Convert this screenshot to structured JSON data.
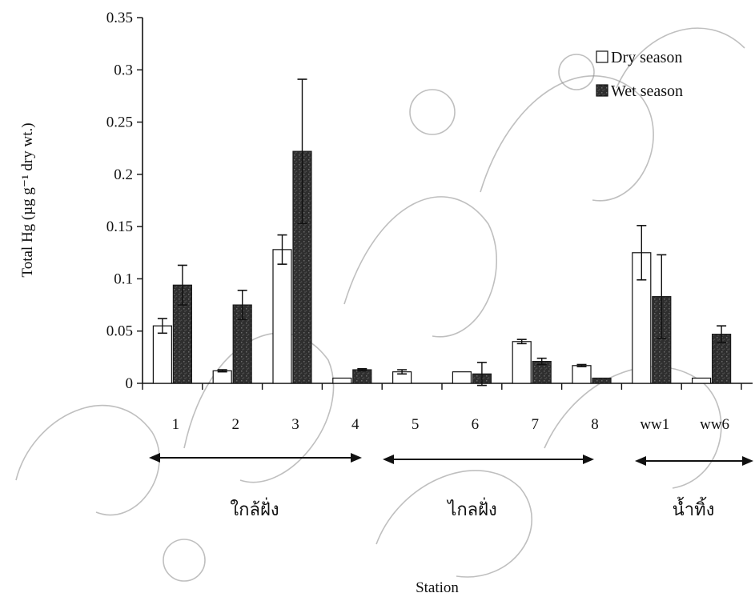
{
  "chart_data": {
    "type": "bar",
    "categories": [
      "1",
      "2",
      "3",
      "4",
      "5",
      "6",
      "7",
      "8",
      "ww1",
      "ww6"
    ],
    "series": [
      {
        "name": "Dry season",
        "values": [
          0.055,
          0.012,
          0.128,
          0.005,
          0.011,
          0.011,
          0.04,
          0.017,
          0.125,
          0.005
        ],
        "errors": [
          0.007,
          0.001,
          0.014,
          0.0,
          0.002,
          0.0,
          0.002,
          0.001,
          0.026,
          0.0
        ],
        "color": "#ffffff"
      },
      {
        "name": "Wet season",
        "values": [
          0.094,
          0.075,
          0.222,
          0.013,
          0.0,
          0.009,
          0.021,
          0.005,
          0.083,
          0.047
        ],
        "errors": [
          0.019,
          0.014,
          0.069,
          0.001,
          0.0,
          0.011,
          0.003,
          0.0,
          0.04,
          0.008
        ],
        "color": "#2e2e2e"
      }
    ],
    "ylabel": "Total Hg (µg g⁻¹ dry wt.)",
    "xlabel": "Station",
    "ylim": [
      0,
      0.35
    ],
    "yticks": [
      "0",
      "0.05",
      "0.1",
      "0.15",
      "0.2",
      "0.25",
      "0.3",
      "0.35"
    ],
    "grid": false,
    "legend_position": "top-right",
    "groups": [
      {
        "label": "ใกล้ฝั่ง",
        "from": "1",
        "to": "4"
      },
      {
        "label": "ไกลฝั่ง",
        "from": "5",
        "to": "8"
      },
      {
        "label": "น้ำทิ้ง",
        "from": "ww1",
        "to": "ww6"
      }
    ]
  }
}
